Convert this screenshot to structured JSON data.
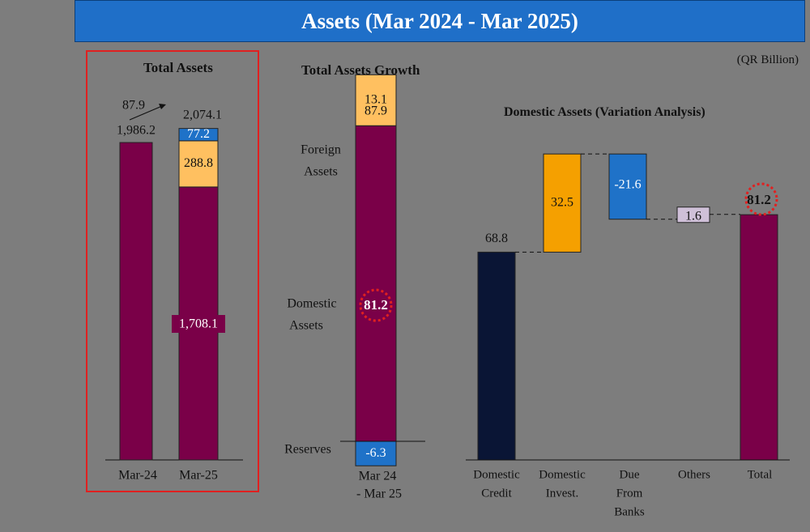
{
  "header": {
    "title": "Assets (Mar 2024 - Mar 2025)"
  },
  "unit_label": "(QR Billion)",
  "colors": {
    "purple": "#7a0048",
    "orange": "#f5a000",
    "light_orange": "#ffc060",
    "blue": "#1f72c8",
    "navy": "#0a1535",
    "lavender": "#cfc0d8",
    "frame": "#e02020",
    "header_blue": "#1f6fc8"
  },
  "chart_data": [
    {
      "type": "bar",
      "title": "Total Assets",
      "categories": [
        "Mar-24",
        "Mar-25"
      ],
      "series": [
        {
          "name": "Domestic Assets",
          "values": [
            1986.2,
            1708.1
          ]
        },
        {
          "name": "Foreign Assets",
          "values": [
            0,
            288.8
          ]
        },
        {
          "name": "Reserves",
          "values": [
            0,
            77.2
          ]
        }
      ],
      "value_labels": [
        "1,986.2",
        "1,708.1",
        "288.8",
        "77.2"
      ],
      "totals": [
        "1,986.2",
        "2,074.1"
      ],
      "annotation": "87.9"
    },
    {
      "type": "bar",
      "title": "Total Assets Growth",
      "categories": [
        "Mar 24 - Mar 25"
      ],
      "series": [
        {
          "name": "Foreign Assets",
          "values": [
            13.1
          ]
        },
        {
          "name": "Domestic Assets",
          "values": [
            81.2
          ]
        },
        {
          "name": "Reserves",
          "values": [
            -6.3
          ]
        }
      ],
      "segment_labels": [
        "Foreign Assets",
        "Domestic Assets",
        "Reserves"
      ],
      "value_labels": [
        "13.1",
        "81.2",
        "-6.3"
      ],
      "total_label": "87.9",
      "category_lines": [
        "Mar 24",
        "- Mar 25"
      ]
    },
    {
      "type": "bar",
      "title": "Domestic Assets (Variation Analysis)",
      "categories": [
        "Domestic Credit",
        "Domestic Invest.",
        "Due From Banks",
        "Others",
        "Total"
      ],
      "values": [
        68.8,
        32.5,
        -21.6,
        1.6,
        81.2
      ],
      "value_labels": [
        "68.8",
        "32.5",
        "-21.6",
        "1.6",
        "81.2"
      ],
      "category_lines": [
        [
          "Domestic",
          "Credit"
        ],
        [
          "Domestic",
          "Invest."
        ],
        [
          "Due",
          "From",
          "Banks"
        ],
        [
          "Others"
        ],
        [
          "Total"
        ]
      ]
    }
  ]
}
